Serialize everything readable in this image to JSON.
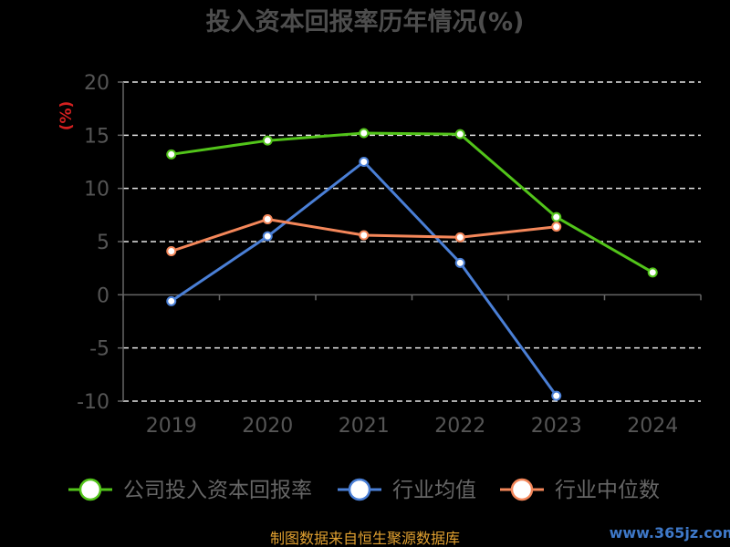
{
  "chart_data": {
    "type": "line",
    "title": "投入资本回报率历年情况(%)",
    "ylabel": "(%)",
    "categories": [
      "2019",
      "2020",
      "2021",
      "2022",
      "2023",
      "2024"
    ],
    "ylim": [
      -10,
      20
    ],
    "yticks": [
      20,
      15,
      10,
      5,
      0,
      -5,
      -10
    ],
    "grid": true,
    "legend_position": "bottom",
    "series": [
      {
        "name": "公司投入资本回报率",
        "color": "#52c41a",
        "values": [
          13.2,
          14.5,
          15.2,
          15.1,
          7.3,
          2.1
        ]
      },
      {
        "name": "行业均值",
        "color": "#4a7fd6",
        "values": [
          -0.6,
          5.5,
          12.5,
          3.0,
          -9.5,
          null
        ]
      },
      {
        "name": "行业中位数",
        "color": "#f4875a",
        "values": [
          4.1,
          7.1,
          5.6,
          5.4,
          6.4,
          null
        ]
      }
    ]
  },
  "footer": {
    "source": "制图数据来自恒生聚源数据库",
    "watermark": "www.365jz.com"
  }
}
